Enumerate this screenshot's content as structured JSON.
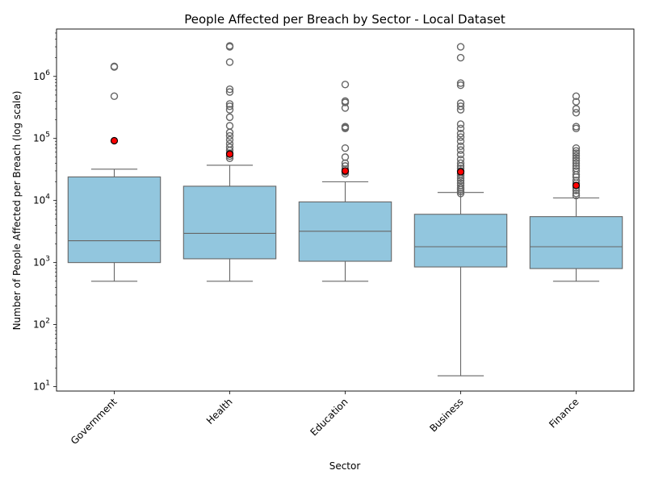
{
  "chart_data": {
    "type": "box",
    "title": "People Affected per Breach by Sector - Local Dataset",
    "xlabel": "Sector",
    "ylabel": "Number of People Affected per Breach (log scale)",
    "yscale": "log",
    "ylim": [
      8.5,
      5800000
    ],
    "yticks": [
      {
        "value": 10,
        "label_base": "10",
        "label_exp": "1"
      },
      {
        "value": 100,
        "label_base": "10",
        "label_exp": "2"
      },
      {
        "value": 1000,
        "label_base": "10",
        "label_exp": "3"
      },
      {
        "value": 10000,
        "label_base": "10",
        "label_exp": "4"
      },
      {
        "value": 100000,
        "label_base": "10",
        "label_exp": "5"
      },
      {
        "value": 1000000,
        "label_base": "10",
        "label_exp": "6"
      }
    ],
    "grid": false,
    "colors": {
      "box_fill": "#92c6de",
      "box_stroke": "#666666",
      "flier_stroke": "#666666",
      "mean_fill": "#ff0000",
      "mean_stroke": "#000000"
    },
    "series": [
      {
        "category": "Government",
        "whisker_low": 500,
        "q1": 1000,
        "median": 2250,
        "q3": 24000,
        "whisker_high": 32000,
        "mean": 92000,
        "outliers": [
          480000,
          1420000,
          1450000
        ]
      },
      {
        "category": "Health",
        "whisker_low": 500,
        "q1": 1150,
        "median": 2950,
        "q3": 17000,
        "whisker_high": 37000,
        "mean": 56000,
        "outliers": [
          48000,
          52000,
          58000,
          64000,
          72000,
          82000,
          95000,
          110000,
          125000,
          160000,
          220000,
          290000,
          330000,
          360000,
          560000,
          620000,
          1700000,
          3000000,
          3100000
        ]
      },
      {
        "category": "Education",
        "whisker_low": 500,
        "q1": 1050,
        "median": 3200,
        "q3": 9500,
        "whisker_high": 20000,
        "mean": 30000,
        "outliers": [
          27000,
          29000,
          32000,
          36000,
          40000,
          50000,
          70000,
          145000,
          150000,
          155000,
          310000,
          380000,
          400000,
          740000
        ]
      },
      {
        "category": "Business",
        "whisker_low": 15,
        "q1": 850,
        "median": 1800,
        "q3": 6000,
        "whisker_high": 13500,
        "mean": 29000,
        "outliers": [
          13000,
          14000,
          15000,
          16000,
          17500,
          19000,
          21000,
          23000,
          25000,
          27000,
          30000,
          33000,
          36000,
          40000,
          46000,
          55000,
          65000,
          75000,
          90000,
          105000,
          120000,
          145000,
          170000,
          290000,
          330000,
          370000,
          720000,
          780000,
          2000000,
          3000000
        ]
      },
      {
        "category": "Finance",
        "whisker_low": 500,
        "q1": 800,
        "median": 1800,
        "q3": 5500,
        "whisker_high": 11000,
        "mean": 17500,
        "outliers": [
          12000,
          13000,
          14500,
          16000,
          19000,
          21000,
          24000,
          26000,
          30000,
          33000,
          36000,
          40000,
          44000,
          48000,
          53000,
          58000,
          63000,
          70000,
          145000,
          155000,
          260000,
          300000,
          390000,
          480000
        ]
      }
    ]
  }
}
